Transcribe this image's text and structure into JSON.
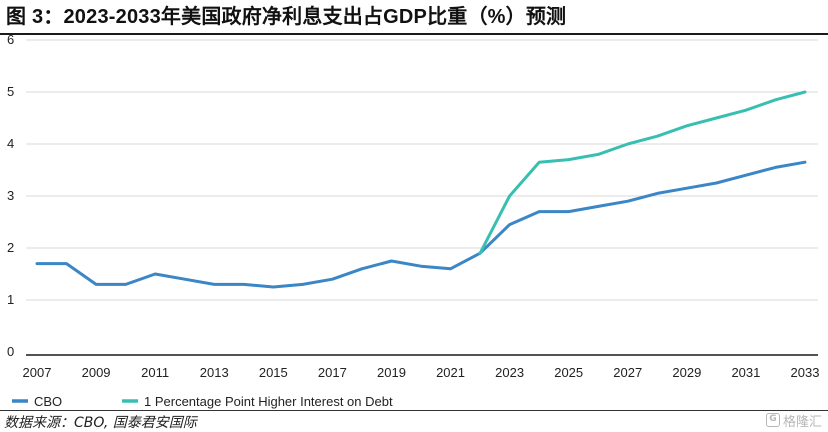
{
  "title": "图 3：2023-2033年美国政府净利息支出占GDP比重（%）预测",
  "source": "数据来源：CBO, 国泰君安国际",
  "watermark": {
    "icon": "G",
    "text": "格隆汇"
  },
  "chart_data": {
    "type": "line",
    "title": "",
    "xlabel": "",
    "ylabel": "",
    "xlim": [
      2007,
      2033
    ],
    "ylim": [
      0,
      6
    ],
    "yticks": [
      0,
      1,
      2,
      3,
      4,
      5,
      6
    ],
    "xticks": [
      "2007",
      "2009",
      "2011",
      "2013",
      "2015",
      "2017",
      "2019",
      "2021",
      "2023",
      "2025",
      "2027",
      "2029",
      "2031",
      "2033"
    ],
    "grid": "horizontal",
    "legend_position": "bottom-left",
    "series": [
      {
        "name": "CBO",
        "color": "#3a86c6",
        "x": [
          2007,
          2008,
          2009,
          2010,
          2011,
          2012,
          2013,
          2014,
          2015,
          2016,
          2017,
          2018,
          2019,
          2020,
          2021,
          2022,
          2023,
          2024,
          2025,
          2026,
          2027,
          2028,
          2029,
          2030,
          2031,
          2032,
          2033
        ],
        "y": [
          1.7,
          1.7,
          1.3,
          1.3,
          1.5,
          1.4,
          1.3,
          1.3,
          1.25,
          1.3,
          1.4,
          1.6,
          1.75,
          1.65,
          1.6,
          1.9,
          2.45,
          2.7,
          2.7,
          2.8,
          2.9,
          3.05,
          3.15,
          3.25,
          3.4,
          3.55,
          3.65
        ]
      },
      {
        "name": "1 Percentage Point Higher Interest on Debt",
        "color": "#38bfb2",
        "x": [
          2022,
          2023,
          2024,
          2025,
          2026,
          2027,
          2028,
          2029,
          2030,
          2031,
          2032,
          2033
        ],
        "y": [
          1.9,
          3.0,
          3.65,
          3.7,
          3.8,
          4.0,
          4.15,
          4.35,
          4.5,
          4.65,
          4.85,
          5.0
        ]
      }
    ]
  }
}
